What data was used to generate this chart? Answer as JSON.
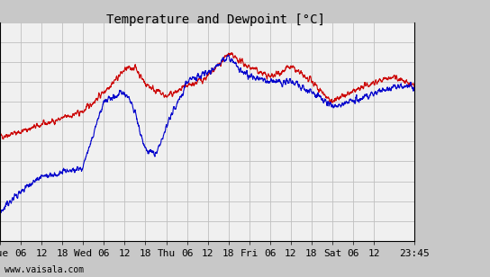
{
  "title": "Temperature and Dewpoint [°C]",
  "ylim": [
    -14,
    8
  ],
  "yticks": [
    -14,
    -12,
    -10,
    -8,
    -6,
    -4,
    -2,
    0,
    2,
    4,
    6,
    8
  ],
  "x_tick_positions": [
    0,
    6,
    12,
    18,
    24,
    30,
    36,
    42,
    48,
    54,
    60,
    66,
    72,
    78,
    84,
    90,
    96,
    102,
    108,
    119.75
  ],
  "x_tick_labels": [
    "Tue",
    "06",
    "12",
    "18",
    "Wed",
    "06",
    "12",
    "18",
    "Thu",
    "06",
    "12",
    "18",
    "Fri",
    "06",
    "12",
    "18",
    "Sat",
    "06",
    "12",
    "23:45"
  ],
  "total_hours": 119.75,
  "temp_color": "#cc0000",
  "dewpoint_color": "#0000cc",
  "background_color": "#c8c8c8",
  "plot_bg_color": "#f0f0f0",
  "grid_color": "#c0c0c0",
  "title_fontsize": 10,
  "tick_fontsize": 8,
  "watermark": "www.vaisala.com",
  "temp_segments": [
    [
      0,
      -3.5
    ],
    [
      6,
      -3.0
    ],
    [
      24,
      -1.0
    ],
    [
      30,
      1.0
    ],
    [
      36,
      3.2
    ],
    [
      39,
      3.5
    ],
    [
      42,
      1.8
    ],
    [
      48,
      0.5
    ],
    [
      54,
      1.5
    ],
    [
      60,
      2.5
    ],
    [
      66,
      4.8
    ],
    [
      72,
      3.5
    ],
    [
      78,
      2.5
    ],
    [
      84,
      3.5
    ],
    [
      90,
      2.0
    ],
    [
      96,
      0.0
    ],
    [
      102,
      1.0
    ],
    [
      108,
      2.0
    ],
    [
      114,
      2.5
    ],
    [
      119.75,
      1.5
    ]
  ],
  "dew_segments": [
    [
      0,
      -11.0
    ],
    [
      6,
      -9.0
    ],
    [
      12,
      -7.5
    ],
    [
      18,
      -7.2
    ],
    [
      24,
      -6.5
    ],
    [
      30,
      0.0
    ],
    [
      36,
      1.0
    ],
    [
      39,
      -1.0
    ],
    [
      42,
      -5.0
    ],
    [
      45,
      -5.3
    ],
    [
      48,
      -2.5
    ],
    [
      54,
      2.0
    ],
    [
      60,
      3.0
    ],
    [
      66,
      4.5
    ],
    [
      72,
      2.5
    ],
    [
      78,
      2.0
    ],
    [
      84,
      2.0
    ],
    [
      90,
      1.0
    ],
    [
      96,
      -0.5
    ],
    [
      102,
      0.0
    ],
    [
      108,
      1.0
    ],
    [
      114,
      1.5
    ],
    [
      119.75,
      1.5
    ]
  ]
}
